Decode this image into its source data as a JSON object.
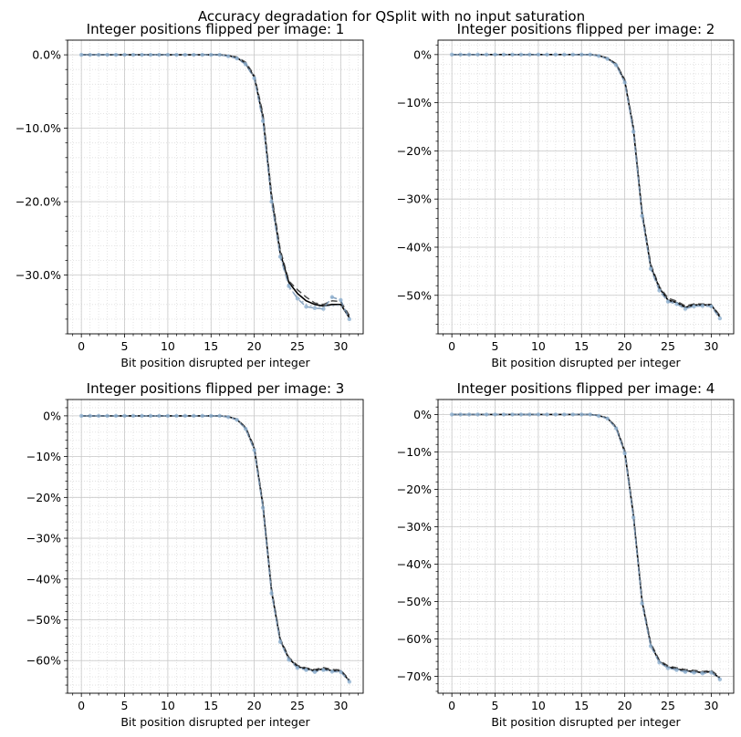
{
  "figure": {
    "suptitle": "Accuracy degradation for QSplit with no input saturation"
  },
  "chart_data": [
    {
      "type": "line",
      "title": "Integer positions flipped per image: 1",
      "xlabel": "Bit position disrupted per integer",
      "ylabel": "",
      "xlim": [
        -1.6,
        32.6
      ],
      "ylim": [
        -38,
        2
      ],
      "x_ticks": [
        0,
        5,
        10,
        15,
        20,
        25,
        30
      ],
      "x_tick_labels": [
        "0",
        "5",
        "10",
        "15",
        "20",
        "25",
        "30"
      ],
      "y_ticks": [
        0,
        -10,
        -20,
        -30
      ],
      "y_tick_labels": [
        "0.0%",
        "−10.0%",
        "−20.0%",
        "−30.0%"
      ],
      "grid": true,
      "x": [
        0,
        1,
        2,
        3,
        4,
        5,
        6,
        7,
        8,
        9,
        10,
        11,
        12,
        13,
        14,
        15,
        16,
        17,
        18,
        19,
        20,
        21,
        22,
        23,
        24,
        25,
        26,
        27,
        28,
        29,
        30,
        31
      ],
      "series": [
        {
          "values": [
            0,
            0,
            0,
            0,
            0,
            0,
            0,
            0,
            0,
            0,
            0,
            0,
            0,
            0,
            0,
            0,
            0,
            -0.1,
            -0.4,
            -1.2,
            -3.0,
            -8.5,
            -19.5,
            -27.0,
            -31.0,
            -32.5,
            -33.5,
            -34.0,
            -34.2,
            -34.0,
            -34.0,
            -35.8
          ],
          "color": "#000000",
          "style": "solid"
        },
        {
          "values": [
            0,
            0,
            0,
            0,
            0,
            0,
            0,
            0,
            0,
            0,
            0,
            0,
            0,
            0,
            0,
            0,
            0,
            -0.1,
            -0.3,
            -1.0,
            -2.8,
            -8.0,
            -19.0,
            -26.5,
            -30.8,
            -32.0,
            -33.0,
            -33.8,
            -34.0,
            -33.5,
            -33.6,
            -35.5
          ],
          "color": "#222222",
          "style": "dashed"
        },
        {
          "values": [
            0,
            0,
            0,
            0,
            0,
            0,
            0,
            0,
            0,
            0,
            0,
            0,
            0,
            0,
            0,
            0,
            0,
            -0.2,
            -0.5,
            -1.3,
            -3.2,
            -9.0,
            -20.0,
            -27.5,
            -31.5,
            -33.2,
            -34.3,
            -34.5,
            -34.6,
            -33.0,
            -33.4,
            -36.0
          ],
          "color": "#6a8caf",
          "style": "dashed"
        },
        {
          "values": [
            0,
            0,
            0,
            0,
            0,
            0,
            0,
            0,
            0,
            0,
            0,
            0,
            0,
            0,
            0,
            0,
            0,
            -0.1,
            -0.4,
            -1.1,
            -3.1,
            -8.7,
            -19.7,
            -27.2,
            -31.7,
            -33.0,
            -34.0,
            -34.3,
            -34.3,
            -34.2,
            -34.1,
            -35.9
          ],
          "color": "#9aafc5",
          "style": "dotted"
        }
      ]
    },
    {
      "type": "line",
      "title": "Integer positions flipped per image: 2",
      "xlabel": "Bit position disrupted per integer",
      "ylabel": "",
      "xlim": [
        -1.6,
        32.6
      ],
      "ylim": [
        -58,
        3
      ],
      "x_ticks": [
        0,
        5,
        10,
        15,
        20,
        25,
        30
      ],
      "x_tick_labels": [
        "0",
        "5",
        "10",
        "15",
        "20",
        "25",
        "30"
      ],
      "y_ticks": [
        0,
        -10,
        -20,
        -30,
        -40,
        -50
      ],
      "y_tick_labels": [
        "0%",
        "−10%",
        "−20%",
        "−30%",
        "−40%",
        "−50%"
      ],
      "grid": true,
      "x": [
        0,
        1,
        2,
        3,
        4,
        5,
        6,
        7,
        8,
        9,
        10,
        11,
        12,
        13,
        14,
        15,
        16,
        17,
        18,
        19,
        20,
        21,
        22,
        23,
        24,
        25,
        26,
        27,
        28,
        29,
        30,
        31
      ],
      "series": [
        {
          "values": [
            0,
            0,
            0,
            0,
            0,
            0,
            0,
            0,
            0,
            0,
            0,
            0,
            0,
            0,
            0,
            0,
            0,
            -0.2,
            -0.8,
            -2.0,
            -5.5,
            -15.5,
            -33.0,
            -44.0,
            -48.5,
            -51.0,
            -51.5,
            -52.5,
            -52.0,
            -52.0,
            -52.0,
            -54.5
          ],
          "color": "#000000",
          "style": "solid"
        },
        {
          "values": [
            0,
            0,
            0,
            0,
            0,
            0,
            0,
            0,
            0,
            0,
            0,
            0,
            0,
            0,
            0,
            0,
            0,
            -0.2,
            -0.7,
            -1.9,
            -5.2,
            -15.0,
            -32.5,
            -43.5,
            -48.2,
            -50.6,
            -51.2,
            -52.2,
            -51.8,
            -51.8,
            -51.9,
            -54.2
          ],
          "color": "#222222",
          "style": "dashed"
        },
        {
          "values": [
            0,
            0,
            0,
            0,
            0,
            0,
            0,
            0,
            0,
            0,
            0,
            0,
            0,
            0,
            0,
            0,
            0,
            -0.3,
            -0.9,
            -2.2,
            -5.8,
            -16.0,
            -33.5,
            -44.5,
            -49.0,
            -51.3,
            -51.8,
            -52.8,
            -52.3,
            -52.2,
            -52.3,
            -54.8
          ],
          "color": "#6a8caf",
          "style": "dashed"
        },
        {
          "values": [
            0,
            0,
            0,
            0,
            0,
            0,
            0,
            0,
            0,
            0,
            0,
            0,
            0,
            0,
            0,
            0,
            0,
            -0.2,
            -0.8,
            -2.1,
            -5.6,
            -15.7,
            -33.2,
            -44.2,
            -48.7,
            -51.1,
            -51.6,
            -52.6,
            -52.1,
            -52.1,
            -52.1,
            -54.6
          ],
          "color": "#9aafc5",
          "style": "dotted"
        }
      ]
    },
    {
      "type": "line",
      "title": "Integer positions flipped per image: 3",
      "xlabel": "Bit position disrupted per integer",
      "ylabel": "",
      "xlim": [
        -1.6,
        32.6
      ],
      "ylim": [
        -68,
        4
      ],
      "x_ticks": [
        0,
        5,
        10,
        15,
        20,
        25,
        30
      ],
      "x_tick_labels": [
        "0",
        "5",
        "10",
        "15",
        "20",
        "25",
        "30"
      ],
      "y_ticks": [
        0,
        -10,
        -20,
        -30,
        -40,
        -50,
        -60
      ],
      "y_tick_labels": [
        "0%",
        "−10%",
        "−20%",
        "−30%",
        "−40%",
        "−50%",
        "−60%"
      ],
      "grid": true,
      "x": [
        0,
        1,
        2,
        3,
        4,
        5,
        6,
        7,
        8,
        9,
        10,
        11,
        12,
        13,
        14,
        15,
        16,
        17,
        18,
        19,
        20,
        21,
        22,
        23,
        24,
        25,
        26,
        27,
        28,
        29,
        30,
        31
      ],
      "series": [
        {
          "values": [
            0,
            0,
            0,
            0,
            0,
            0,
            0,
            0,
            0,
            0,
            0,
            0,
            0,
            0,
            0,
            0,
            0,
            -0.2,
            -0.9,
            -3.0,
            -8.0,
            -22.0,
            -43.0,
            -55.0,
            -59.5,
            -61.5,
            -62.0,
            -62.5,
            -62.0,
            -62.5,
            -62.5,
            -65.0
          ],
          "color": "#000000",
          "style": "solid"
        },
        {
          "values": [
            0,
            0,
            0,
            0,
            0,
            0,
            0,
            0,
            0,
            0,
            0,
            0,
            0,
            0,
            0,
            0,
            0,
            -0.2,
            -0.8,
            -2.8,
            -7.6,
            -21.5,
            -42.5,
            -54.6,
            -59.2,
            -61.2,
            -61.8,
            -62.2,
            -61.7,
            -62.2,
            -62.3,
            -64.7
          ],
          "color": "#222222",
          "style": "dashed"
        },
        {
          "values": [
            0,
            0,
            0,
            0,
            0,
            0,
            0,
            0,
            0,
            0,
            0,
            0,
            0,
            0,
            0,
            0,
            0,
            -0.3,
            -1.0,
            -3.2,
            -8.4,
            -22.5,
            -43.5,
            -55.4,
            -59.8,
            -61.8,
            -62.3,
            -62.8,
            -62.3,
            -62.7,
            -62.8,
            -65.2
          ],
          "color": "#6a8caf",
          "style": "dashed"
        },
        {
          "values": [
            0,
            0,
            0,
            0,
            0,
            0,
            0,
            0,
            0,
            0,
            0,
            0,
            0,
            0,
            0,
            0,
            0,
            -0.2,
            -0.9,
            -3.1,
            -8.1,
            -22.2,
            -43.2,
            -55.2,
            -59.6,
            -61.6,
            -62.1,
            -62.6,
            -62.1,
            -62.6,
            -62.6,
            -65.1
          ],
          "color": "#9aafc5",
          "style": "dotted"
        }
      ]
    },
    {
      "type": "line",
      "title": "Integer positions flipped per image: 4",
      "xlabel": "Bit position disrupted per integer",
      "ylabel": "",
      "xlim": [
        -1.6,
        32.6
      ],
      "ylim": [
        -74.5,
        4
      ],
      "x_ticks": [
        0,
        5,
        10,
        15,
        20,
        25,
        30
      ],
      "x_tick_labels": [
        "0",
        "5",
        "10",
        "15",
        "20",
        "25",
        "30"
      ],
      "y_ticks": [
        0,
        -10,
        -20,
        -30,
        -40,
        -50,
        -60,
        -70
      ],
      "y_tick_labels": [
        "0%",
        "−10%",
        "−20%",
        "−30%",
        "−40%",
        "−50%",
        "−60%",
        "−70%"
      ],
      "grid": true,
      "x": [
        0,
        1,
        2,
        3,
        4,
        5,
        6,
        7,
        8,
        9,
        10,
        11,
        12,
        13,
        14,
        15,
        16,
        17,
        18,
        19,
        20,
        21,
        22,
        23,
        24,
        25,
        26,
        27,
        28,
        29,
        30,
        31
      ],
      "series": [
        {
          "values": [
            0,
            0,
            0,
            0,
            0,
            0,
            0,
            0,
            0,
            0,
            0,
            0,
            0,
            0,
            0,
            0,
            0,
            -0.3,
            -1.0,
            -3.5,
            -10.0,
            -27.0,
            -50.0,
            -61.5,
            -66.0,
            -67.5,
            -68.0,
            -68.5,
            -68.7,
            -69.0,
            -68.7,
            -70.5
          ],
          "color": "#000000",
          "style": "solid"
        },
        {
          "values": [
            0,
            0,
            0,
            0,
            0,
            0,
            0,
            0,
            0,
            0,
            0,
            0,
            0,
            0,
            0,
            0,
            0,
            -0.3,
            -0.9,
            -3.3,
            -9.6,
            -26.5,
            -49.5,
            -61.1,
            -65.7,
            -67.2,
            -67.7,
            -68.2,
            -68.4,
            -68.7,
            -68.4,
            -70.2
          ],
          "color": "#222222",
          "style": "dashed"
        },
        {
          "values": [
            0,
            0,
            0,
            0,
            0,
            0,
            0,
            0,
            0,
            0,
            0,
            0,
            0,
            0,
            0,
            0,
            0,
            -0.4,
            -1.1,
            -3.7,
            -10.4,
            -27.5,
            -50.5,
            -61.9,
            -66.3,
            -67.8,
            -68.3,
            -68.8,
            -69.0,
            -69.2,
            -69.0,
            -70.8
          ],
          "color": "#6a8caf",
          "style": "dashed"
        },
        {
          "values": [
            0,
            0,
            0,
            0,
            0,
            0,
            0,
            0,
            0,
            0,
            0,
            0,
            0,
            0,
            0,
            0,
            0,
            -0.3,
            -1.0,
            -3.6,
            -10.1,
            -27.2,
            -50.2,
            -61.7,
            -66.1,
            -67.6,
            -68.1,
            -68.6,
            -68.8,
            -69.1,
            -68.8,
            -70.6
          ],
          "color": "#9aafc5",
          "style": "dotted"
        }
      ]
    }
  ]
}
